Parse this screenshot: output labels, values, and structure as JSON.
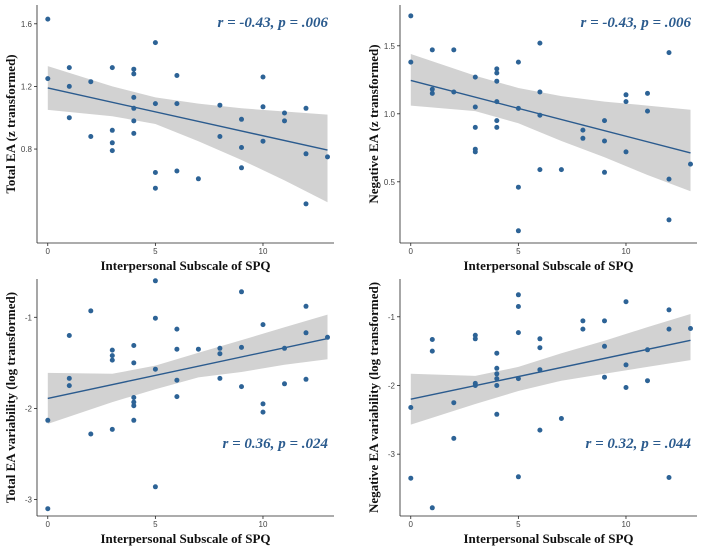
{
  "chart_data": [
    {
      "type": "scatter",
      "panel": "top-left",
      "xlabel": "Interpersonal Subscale of SPQ",
      "ylabel": "Total EA (z transformed)",
      "stat_r": "r = -0.43,",
      "stat_p": "p = .006",
      "stat_pos": "top-right",
      "xlim": [
        -0.5,
        13.3
      ],
      "ylim": [
        0.2,
        1.72
      ],
      "xticks": [
        0,
        5,
        10
      ],
      "yticks": [
        0.8,
        1.2,
        1.6
      ],
      "ytick_labels": [
        "0.8",
        "1.2",
        "1.6"
      ],
      "fit": {
        "intercept": 1.19,
        "slope": -0.0305
      },
      "ci": [
        [
          0,
          1.33,
          1.05
        ],
        [
          3,
          1.2,
          1.01
        ],
        [
          5,
          1.13,
          0.96
        ],
        [
          7,
          1.09,
          0.85
        ],
        [
          9,
          1.06,
          0.73
        ],
        [
          11,
          1.04,
          0.6
        ],
        [
          13,
          1.02,
          0.46
        ]
      ],
      "points": [
        [
          0,
          1.63
        ],
        [
          0,
          1.25
        ],
        [
          1,
          1.2
        ],
        [
          1,
          1.0
        ],
        [
          1,
          1.32
        ],
        [
          2,
          1.23
        ],
        [
          2,
          0.88
        ],
        [
          3,
          1.32
        ],
        [
          3,
          0.92
        ],
        [
          3,
          0.84
        ],
        [
          3,
          0.79
        ],
        [
          4,
          1.31
        ],
        [
          4,
          1.28
        ],
        [
          4,
          1.13
        ],
        [
          4,
          1.06
        ],
        [
          4,
          0.98
        ],
        [
          4,
          0.9
        ],
        [
          5,
          1.48
        ],
        [
          5,
          1.09
        ],
        [
          5,
          0.65
        ],
        [
          5,
          0.55
        ],
        [
          6,
          1.27
        ],
        [
          6,
          1.09
        ],
        [
          6,
          0.66
        ],
        [
          7,
          0.61
        ],
        [
          8,
          1.08
        ],
        [
          8,
          0.88
        ],
        [
          9,
          0.99
        ],
        [
          9,
          0.81
        ],
        [
          9,
          0.68
        ],
        [
          10,
          1.26
        ],
        [
          10,
          1.07
        ],
        [
          10,
          0.85
        ],
        [
          11,
          1.03
        ],
        [
          11,
          0.98
        ],
        [
          12,
          1.06
        ],
        [
          12,
          0.77
        ],
        [
          12,
          0.45
        ],
        [
          13,
          0.75
        ]
      ]
    },
    {
      "type": "scatter",
      "panel": "top-right",
      "xlabel": "Interpersonal Subscale of SPQ",
      "ylabel": "Negative EA (z transformed)",
      "stat_r": "r = -0.43,",
      "stat_p": "p = .006",
      "stat_pos": "top-right",
      "xlim": [
        -0.5,
        13.3
      ],
      "ylim": [
        0.05,
        1.8
      ],
      "xticks": [
        0,
        5,
        10
      ],
      "yticks": [
        0.5,
        1.0,
        1.5
      ],
      "ytick_labels": [
        "0.5",
        "1.0",
        "1.5"
      ],
      "fit": {
        "intercept": 1.245,
        "slope": -0.041
      },
      "ci": [
        [
          0,
          1.44,
          1.06
        ],
        [
          3,
          1.28,
          1.02
        ],
        [
          5,
          1.19,
          0.93
        ],
        [
          7,
          1.13,
          0.8
        ],
        [
          9,
          1.09,
          0.68
        ],
        [
          11,
          1.06,
          0.55
        ],
        [
          13,
          1.03,
          0.43
        ]
      ],
      "points": [
        [
          0,
          1.72
        ],
        [
          0,
          1.38
        ],
        [
          1,
          1.47
        ],
        [
          1,
          1.18
        ],
        [
          1,
          1.15
        ],
        [
          2,
          1.47
        ],
        [
          2,
          1.16
        ],
        [
          3,
          1.27
        ],
        [
          3,
          1.05
        ],
        [
          3,
          0.9
        ],
        [
          3,
          0.74
        ],
        [
          3,
          0.72
        ],
        [
          4,
          1.33
        ],
        [
          4,
          1.3
        ],
        [
          4,
          1.24
        ],
        [
          4,
          1.09
        ],
        [
          4,
          0.95
        ],
        [
          4,
          0.9
        ],
        [
          5,
          1.38
        ],
        [
          5,
          1.04
        ],
        [
          5,
          0.46
        ],
        [
          5,
          0.14
        ],
        [
          6,
          1.52
        ],
        [
          6,
          1.16
        ],
        [
          6,
          0.99
        ],
        [
          6,
          0.59
        ],
        [
          7,
          0.59
        ],
        [
          8,
          0.88
        ],
        [
          8,
          0.82
        ],
        [
          9,
          0.95
        ],
        [
          9,
          0.8
        ],
        [
          9,
          0.57
        ],
        [
          10,
          1.14
        ],
        [
          10,
          1.09
        ],
        [
          10,
          0.72
        ],
        [
          11,
          1.15
        ],
        [
          11,
          1.02
        ],
        [
          12,
          1.45
        ],
        [
          12,
          0.52
        ],
        [
          12,
          0.22
        ],
        [
          13,
          0.63
        ]
      ]
    },
    {
      "type": "scatter",
      "panel": "bottom-left",
      "xlabel": "Interpersonal Subscale of SPQ",
      "ylabel": "Total EA variability (log transformed)",
      "stat_r": "r = 0.36,",
      "stat_p": "p = .024",
      "stat_pos": "bottom-right",
      "xlim": [
        -0.5,
        13.3
      ],
      "ylim": [
        -3.18,
        -0.58
      ],
      "xticks": [
        0,
        5,
        10
      ],
      "yticks": [
        -1,
        -2,
        -3
      ],
      "ytick_labels": [
        "-1",
        "-2",
        "-3"
      ],
      "fit": {
        "intercept": -1.89,
        "slope": 0.0505
      },
      "ci": [
        [
          0,
          -1.61,
          -2.17
        ],
        [
          3,
          -1.62,
          -1.93
        ],
        [
          5,
          -1.53,
          -1.79
        ],
        [
          7,
          -1.39,
          -1.66
        ],
        [
          9,
          -1.25,
          -1.6
        ],
        [
          11,
          -1.11,
          -1.52
        ],
        [
          13,
          -0.97,
          -1.46
        ]
      ],
      "points": [
        [
          0,
          -2.13
        ],
        [
          0,
          -3.1
        ],
        [
          1,
          -1.2
        ],
        [
          1,
          -1.67
        ],
        [
          1,
          -1.75
        ],
        [
          2,
          -0.93
        ],
        [
          2,
          -2.28
        ],
        [
          3,
          -1.36
        ],
        [
          3,
          -1.42
        ],
        [
          3,
          -1.47
        ],
        [
          3,
          -2.23
        ],
        [
          4,
          -1.31
        ],
        [
          4,
          -1.5
        ],
        [
          4,
          -1.88
        ],
        [
          4,
          -1.93
        ],
        [
          4,
          -1.97
        ],
        [
          4,
          -2.13
        ],
        [
          5,
          -0.6
        ],
        [
          5,
          -1.01
        ],
        [
          5,
          -1.57
        ],
        [
          5,
          -2.86
        ],
        [
          6,
          -1.13
        ],
        [
          6,
          -1.35
        ],
        [
          6,
          -1.69
        ],
        [
          6,
          -1.87
        ],
        [
          7,
          -1.35
        ],
        [
          8,
          -1.34
        ],
        [
          8,
          -1.4
        ],
        [
          8,
          -1.67
        ],
        [
          9,
          -0.72
        ],
        [
          9,
          -1.33
        ],
        [
          9,
          -1.76
        ],
        [
          10,
          -1.08
        ],
        [
          10,
          -1.95
        ],
        [
          10,
          -2.04
        ],
        [
          11,
          -1.34
        ],
        [
          11,
          -1.73
        ],
        [
          12,
          -0.88
        ],
        [
          12,
          -1.17
        ],
        [
          12,
          -1.68
        ],
        [
          13,
          -1.22
        ]
      ]
    },
    {
      "type": "scatter",
      "panel": "bottom-right",
      "xlabel": "Interpersonal Subscale of SPQ",
      "ylabel": "Negative EA variability (log transformed)",
      "stat_r": "r = 0.32,",
      "stat_p": "p = .044",
      "stat_pos": "bottom-right",
      "xlim": [
        -0.5,
        13.3
      ],
      "ylim": [
        -3.9,
        -0.45
      ],
      "xticks": [
        0,
        5,
        10
      ],
      "yticks": [
        -1,
        -2,
        -3
      ],
      "ytick_labels": [
        "-1",
        "-2",
        "-3"
      ],
      "fit": {
        "intercept": -2.2,
        "slope": 0.066
      },
      "ci": [
        [
          0,
          -1.83,
          -2.57
        ],
        [
          3,
          -1.86,
          -2.27
        ],
        [
          5,
          -1.73,
          -2.08
        ],
        [
          7,
          -1.53,
          -1.93
        ],
        [
          9,
          -1.35,
          -1.83
        ],
        [
          11,
          -1.15,
          -1.73
        ],
        [
          13,
          -0.96,
          -1.63
        ]
      ],
      "points": [
        [
          0,
          -2.32
        ],
        [
          0,
          -3.35
        ],
        [
          1,
          -1.33
        ],
        [
          1,
          -1.5
        ],
        [
          1,
          -3.78
        ],
        [
          2,
          -2.25
        ],
        [
          2,
          -2.77
        ],
        [
          3,
          -1.27
        ],
        [
          3,
          -1.32
        ],
        [
          3,
          -1.97
        ],
        [
          3,
          -2.0
        ],
        [
          4,
          -1.53
        ],
        [
          4,
          -1.75
        ],
        [
          4,
          -1.83
        ],
        [
          4,
          -1.9
        ],
        [
          4,
          -2.0
        ],
        [
          4,
          -2.42
        ],
        [
          5,
          -0.68
        ],
        [
          5,
          -0.85
        ],
        [
          5,
          -1.23
        ],
        [
          5,
          -1.9
        ],
        [
          5,
          -3.33
        ],
        [
          6,
          -1.32
        ],
        [
          6,
          -1.45
        ],
        [
          6,
          -1.77
        ],
        [
          6,
          -2.65
        ],
        [
          7,
          -2.48
        ],
        [
          8,
          -1.06
        ],
        [
          8,
          -1.18
        ],
        [
          9,
          -1.06
        ],
        [
          9,
          -1.43
        ],
        [
          9,
          -1.88
        ],
        [
          10,
          -0.78
        ],
        [
          10,
          -1.7
        ],
        [
          10,
          -2.03
        ],
        [
          11,
          -1.48
        ],
        [
          11,
          -1.93
        ],
        [
          12,
          -0.9
        ],
        [
          12,
          -1.18
        ],
        [
          12,
          -3.34
        ],
        [
          13,
          -1.17
        ]
      ]
    }
  ],
  "colors": {
    "point": "#2d6396",
    "line": "#2b5b8e",
    "band": "#d2d2d2",
    "axis": "#222222",
    "text": "#2b5b8e"
  }
}
